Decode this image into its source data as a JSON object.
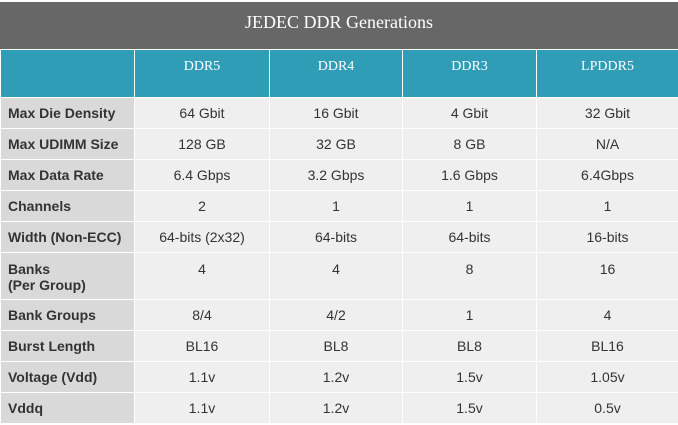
{
  "title": "JEDEC DDR Generations",
  "columns": [
    "DDR5",
    "DDR4",
    "DDR3",
    "LPDDR5"
  ],
  "rows": [
    {
      "label": "Max Die Density",
      "values": [
        "64 Gbit",
        "16 Gbit",
        "4 Gbit",
        "32 Gbit"
      ]
    },
    {
      "label": "Max UDIMM Size",
      "values": [
        "128 GB",
        "32 GB",
        "8 GB",
        "N/A"
      ]
    },
    {
      "label": "Max Data Rate",
      "values": [
        "6.4 Gbps",
        "3.2 Gbps",
        "1.6 Gbps",
        "6.4Gbps"
      ]
    },
    {
      "label": "Channels",
      "values": [
        "2",
        "1",
        "1",
        "1"
      ]
    },
    {
      "label": "Width (Non-ECC)",
      "values": [
        "64-bits (2x32)",
        "64-bits",
        "64-bits",
        "16-bits"
      ]
    },
    {
      "label": "Banks",
      "label2": "(Per Group)",
      "values": [
        "4",
        "4",
        "8",
        "16"
      ]
    },
    {
      "label": "Bank Groups",
      "values": [
        "8/4",
        "4/2",
        "1",
        "4"
      ]
    },
    {
      "label": "Burst Length",
      "values": [
        "BL16",
        "BL8",
        "BL8",
        "BL16"
      ]
    },
    {
      "label": "Voltage (Vdd)",
      "values": [
        "1.1v",
        "1.2v",
        "1.5v",
        "1.05v"
      ]
    },
    {
      "label": "Vddq",
      "values": [
        "1.1v",
        "1.2v",
        "1.5v",
        "0.5v"
      ]
    }
  ]
}
